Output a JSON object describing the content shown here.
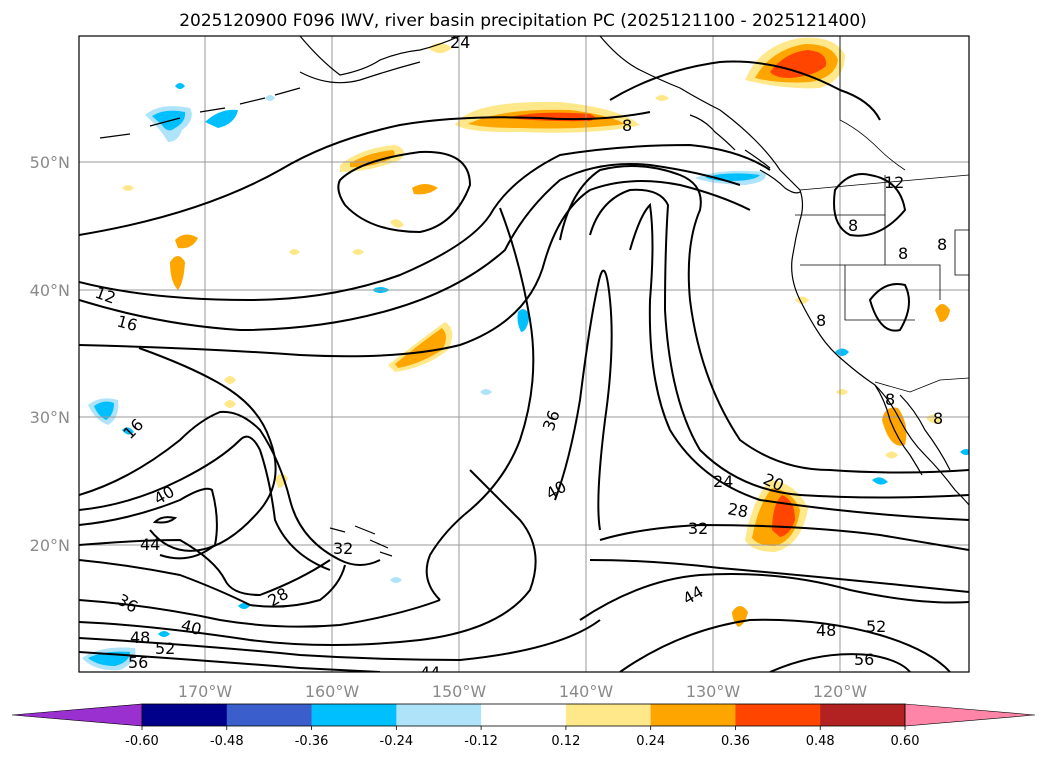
{
  "title": "2025120900 F096 IWV, river basin precipitation PC (2025121100 - 2025121400)",
  "map": {
    "lat_labels": [
      "50°N",
      "40°N",
      "30°N",
      "20°N"
    ],
    "lon_labels": [
      "170°W",
      "160°W",
      "150°W",
      "140°W",
      "130°W",
      "120°W"
    ]
  },
  "iwv_contour_labels": [
    "12",
    "16",
    "16",
    "24",
    "20",
    "28",
    "32",
    "36",
    "40",
    "40",
    "44",
    "32",
    "28",
    "36",
    "40",
    "48",
    "52",
    "56",
    "44",
    "48",
    "52",
    "56",
    "44",
    "8",
    "8",
    "12",
    "8",
    "8",
    "8",
    "8",
    "8",
    "24"
  ],
  "colorbar": {
    "levels": [
      "-0.60",
      "-0.48",
      "-0.36",
      "-0.24",
      "-0.12",
      "0.12",
      "0.24",
      "0.36",
      "0.48",
      "0.60"
    ],
    "colors": [
      "#9b30d0",
      "#00008b",
      "#3a5fcd",
      "#00bfff",
      "#aee3fa",
      "#ffffff",
      "#ffe88a",
      "#ffa500",
      "#ff4500",
      "#b22222",
      "#ff85a8"
    ]
  },
  "colors": {
    "contour": "#000000",
    "grid": "#999999",
    "axis_label": "#8a8a8a"
  }
}
